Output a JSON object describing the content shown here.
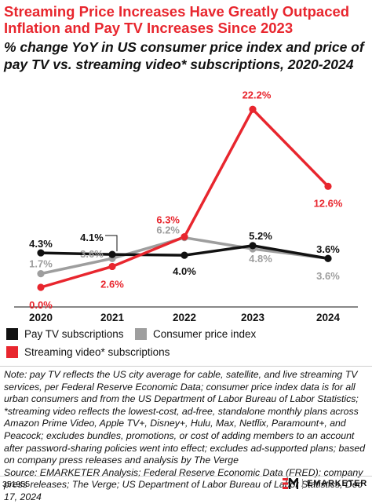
{
  "title": "Streaming Price Increases Have Greatly Outpaced Inflation and Pay TV Increases Since 2023",
  "subtitle": "% change YoY in US consumer price index and price of pay TV vs. streaming video* subscriptions, 2020-2024",
  "chart_data": {
    "type": "line",
    "x": [
      "2020",
      "2021",
      "2022",
      "2023",
      "2024"
    ],
    "ylim": [
      0,
      23.5
    ],
    "grid": false,
    "legend_position": "bottom",
    "series": [
      {
        "name": "Pay TV subscriptions",
        "color": "#111111",
        "values": [
          4.3,
          4.1,
          4.0,
          5.2,
          3.6
        ],
        "labels": [
          "4.3%",
          "4.1%",
          "4.0%",
          "5.2%",
          "3.6%"
        ]
      },
      {
        "name": "Consumer price index",
        "color": "#9e9e9e",
        "values": [
          1.7,
          3.6,
          6.2,
          4.8,
          3.6
        ],
        "labels": [
          "1.7%",
          "3.6%",
          "6.2%",
          "4.8%",
          "3.6%"
        ]
      },
      {
        "name": "Streaming video* subscriptions",
        "color": "#e8262e",
        "values": [
          0.0,
          2.6,
          6.3,
          22.2,
          12.6
        ],
        "labels": [
          "0.0%",
          "2.6%",
          "6.3%",
          "22.2%",
          "12.6%"
        ]
      }
    ]
  },
  "note": "Note: pay TV reflects the US city average for cable, satellite, and live streaming TV services, per Federal Reserve Economic Data; consumer price index data is for all urban consumers and from the US Department of Labor Bureau of Labor Statistics; *streaming video reflects the lowest-cost, ad-free, standalone monthly plans across Amazon Prime Video, Apple TV+, Disney+, Hulu, Max, Netflix, Paramount+, and Peacock; excludes bundles, promotions, or cost of adding members to an account after password-sharing policies went into effect; excludes ad-supported plans; based on company press releases and analysis by The Verge",
  "source": "Source: EMARKETER Analysis; Federal Reserve Economic Data (FRED); company press releases; The Verge; US Department of Labor Bureau of Labor Statistics, Dec 17, 2024",
  "footer": {
    "chart_id": "351955",
    "brand": "EMARKETER",
    "logo": "em-logo-icon"
  }
}
